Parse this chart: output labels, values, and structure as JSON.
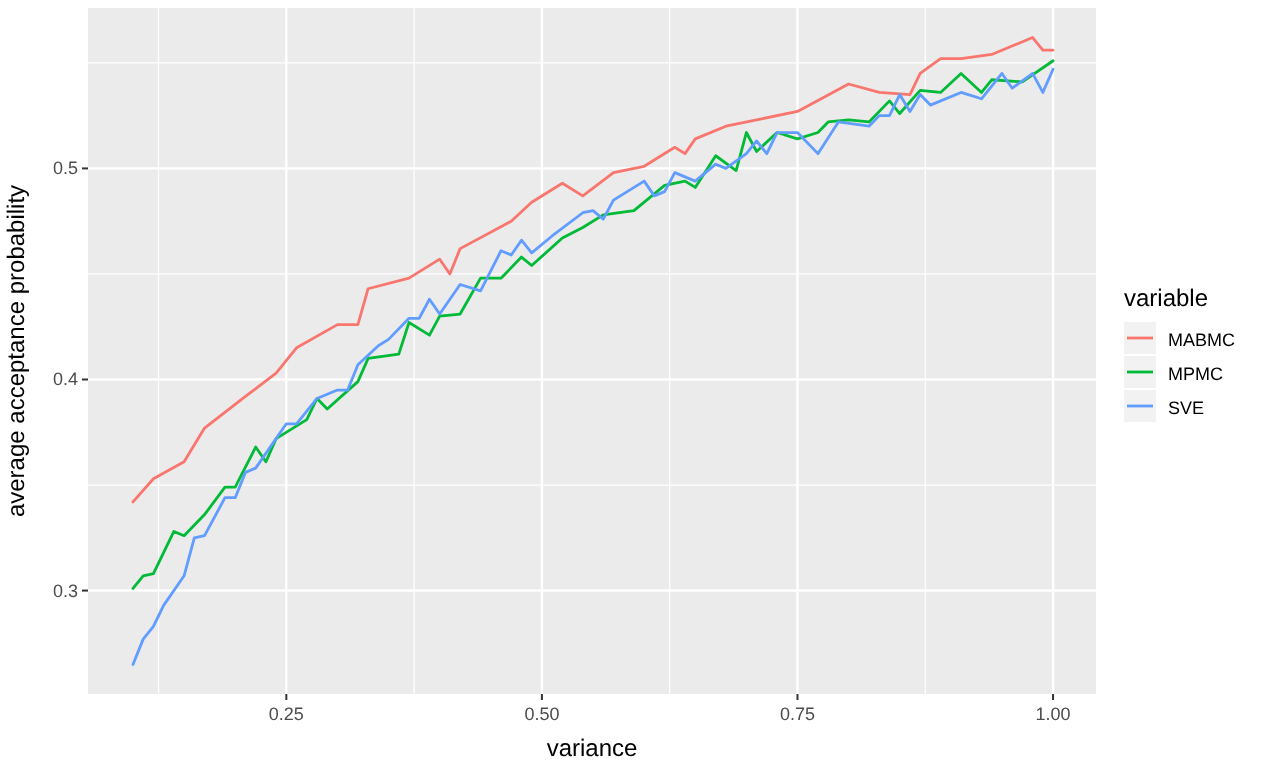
{
  "chart_data": {
    "type": "line",
    "xlabel": "variance",
    "ylabel": "average acceptance probability",
    "legend_title": "variable",
    "legend": "right",
    "grid": true,
    "marker": "none",
    "line_style": "solid",
    "xlim": [
      0.056,
      1.042
    ],
    "ylim": [
      0.251,
      0.576
    ],
    "xticks": [
      {
        "value": 0.25,
        "label": "0.25"
      },
      {
        "value": 0.5,
        "label": "0.50"
      },
      {
        "value": 0.75,
        "label": "0.75"
      },
      {
        "value": 1,
        "label": "1.00"
      }
    ],
    "yticks": [
      0.3,
      0.4,
      0.5
    ],
    "series": [
      {
        "name": "MABMC",
        "color": "#f8766d",
        "x": [
          0.1,
          0.12,
          0.15,
          0.17,
          0.21,
          0.24,
          0.26,
          0.3,
          0.32,
          0.33,
          0.37,
          0.4,
          0.41,
          0.42,
          0.47,
          0.49,
          0.52,
          0.54,
          0.57,
          0.6,
          0.63,
          0.64,
          0.65,
          0.68,
          0.71,
          0.75,
          0.8,
          0.83,
          0.86,
          0.87,
          0.89,
          0.91,
          0.94,
          0.98,
          0.99,
          1.0
        ],
        "values": [
          0.342,
          0.353,
          0.361,
          0.377,
          0.392,
          0.403,
          0.415,
          0.426,
          0.426,
          0.443,
          0.448,
          0.457,
          0.45,
          0.462,
          0.475,
          0.484,
          0.493,
          0.487,
          0.498,
          0.501,
          0.51,
          0.507,
          0.514,
          0.52,
          0.523,
          0.527,
          0.54,
          0.536,
          0.535,
          0.545,
          0.552,
          0.552,
          0.554,
          0.562,
          0.556,
          0.556
        ]
      },
      {
        "name": "MPMC",
        "color": "#00ba38",
        "x": [
          0.1,
          0.11,
          0.12,
          0.14,
          0.15,
          0.17,
          0.19,
          0.2,
          0.22,
          0.23,
          0.24,
          0.27,
          0.28,
          0.29,
          0.32,
          0.33,
          0.36,
          0.37,
          0.39,
          0.4,
          0.42,
          0.44,
          0.46,
          0.48,
          0.49,
          0.52,
          0.54,
          0.56,
          0.59,
          0.62,
          0.64,
          0.65,
          0.67,
          0.69,
          0.7,
          0.71,
          0.73,
          0.75,
          0.77,
          0.78,
          0.8,
          0.82,
          0.84,
          0.85,
          0.87,
          0.89,
          0.91,
          0.93,
          0.94,
          0.97,
          1.0
        ],
        "values": [
          0.301,
          0.307,
          0.308,
          0.328,
          0.326,
          0.336,
          0.349,
          0.349,
          0.368,
          0.361,
          0.372,
          0.381,
          0.391,
          0.386,
          0.399,
          0.41,
          0.412,
          0.427,
          0.421,
          0.43,
          0.431,
          0.448,
          0.448,
          0.458,
          0.454,
          0.467,
          0.472,
          0.478,
          0.48,
          0.492,
          0.494,
          0.491,
          0.506,
          0.499,
          0.517,
          0.508,
          0.517,
          0.514,
          0.517,
          0.522,
          0.523,
          0.522,
          0.532,
          0.526,
          0.537,
          0.536,
          0.545,
          0.536,
          0.542,
          0.541,
          0.551
        ]
      },
      {
        "name": "SVE",
        "color": "#619cff",
        "x": [
          0.1,
          0.11,
          0.12,
          0.13,
          0.15,
          0.16,
          0.17,
          0.19,
          0.2,
          0.21,
          0.22,
          0.25,
          0.26,
          0.28,
          0.3,
          0.31,
          0.32,
          0.34,
          0.35,
          0.37,
          0.38,
          0.39,
          0.4,
          0.42,
          0.44,
          0.46,
          0.47,
          0.48,
          0.49,
          0.51,
          0.54,
          0.55,
          0.56,
          0.57,
          0.6,
          0.61,
          0.62,
          0.63,
          0.65,
          0.67,
          0.68,
          0.7,
          0.71,
          0.72,
          0.73,
          0.74,
          0.75,
          0.77,
          0.79,
          0.82,
          0.83,
          0.84,
          0.85,
          0.86,
          0.87,
          0.88,
          0.91,
          0.93,
          0.95,
          0.96,
          0.98,
          0.99,
          1.0
        ],
        "values": [
          0.265,
          0.277,
          0.283,
          0.293,
          0.307,
          0.325,
          0.326,
          0.344,
          0.344,
          0.356,
          0.358,
          0.379,
          0.379,
          0.391,
          0.395,
          0.395,
          0.407,
          0.416,
          0.419,
          0.429,
          0.429,
          0.438,
          0.431,
          0.445,
          0.442,
          0.461,
          0.459,
          0.466,
          0.46,
          0.468,
          0.479,
          0.48,
          0.476,
          0.485,
          0.494,
          0.487,
          0.489,
          0.498,
          0.494,
          0.502,
          0.5,
          0.507,
          0.513,
          0.507,
          0.517,
          0.517,
          0.517,
          0.507,
          0.522,
          0.52,
          0.525,
          0.525,
          0.535,
          0.527,
          0.535,
          0.53,
          0.536,
          0.533,
          0.545,
          0.538,
          0.545,
          0.536,
          0.547
        ]
      }
    ]
  }
}
